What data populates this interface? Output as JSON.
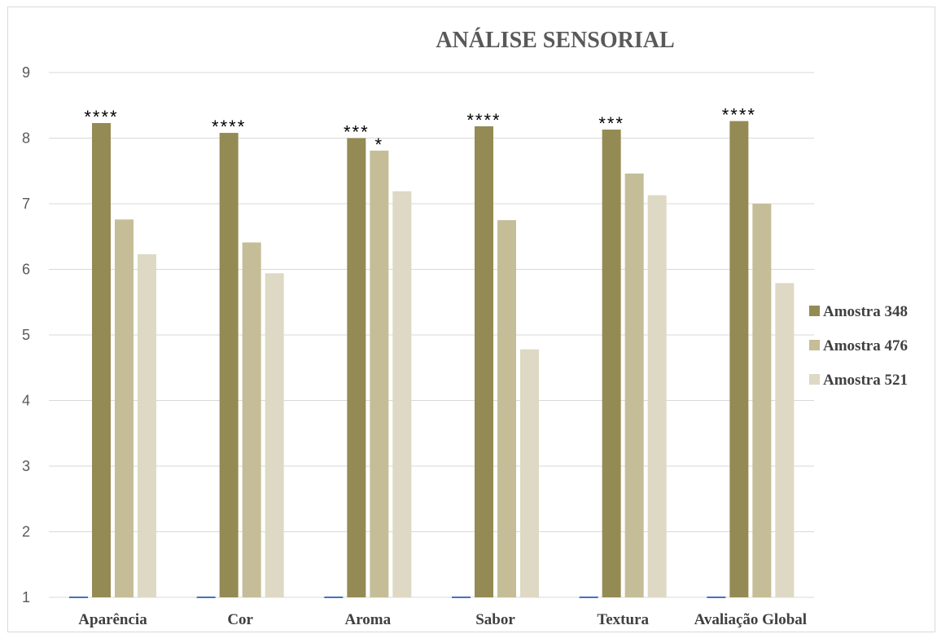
{
  "chart_data": {
    "type": "bar",
    "title": "ANÁLISE  SENSORIAL",
    "xlabel": "",
    "ylabel": "",
    "ylim": [
      1,
      9
    ],
    "yticks": [
      "1",
      "2",
      "3",
      "4",
      "5",
      "6",
      "7",
      "8",
      "9"
    ],
    "grid": true,
    "legend_position": "right",
    "categories": [
      "Aparência",
      "Cor",
      "Aroma",
      "Sabor",
      "Textura",
      "Avaliação Global"
    ],
    "series": [
      {
        "name": "Amostra 348",
        "color": "#948a54",
        "values": [
          8.23,
          8.08,
          8.0,
          8.18,
          8.13,
          8.26
        ]
      },
      {
        "name": "Amostra 476",
        "color": "#c4bd97",
        "values": [
          6.76,
          6.41,
          7.81,
          6.75,
          7.46,
          7.0
        ]
      },
      {
        "name": "Amostra 521",
        "color": "#ddd9c4",
        "values": [
          6.23,
          5.94,
          7.19,
          4.78,
          7.13,
          5.79
        ]
      }
    ],
    "empty_series_color": "#4472c4",
    "annotations": [
      {
        "category": "Aparência",
        "series": 0,
        "text": "****"
      },
      {
        "category": "Cor",
        "series": 0,
        "text": "****"
      },
      {
        "category": "Aroma",
        "series": 0,
        "text": "***"
      },
      {
        "category": "Aroma",
        "series": 1,
        "text": "*"
      },
      {
        "category": "Sabor",
        "series": 0,
        "text": "****"
      },
      {
        "category": "Textura",
        "series": 0,
        "text": "***"
      },
      {
        "category": "Avaliação Global",
        "series": 0,
        "text": "****"
      }
    ]
  }
}
